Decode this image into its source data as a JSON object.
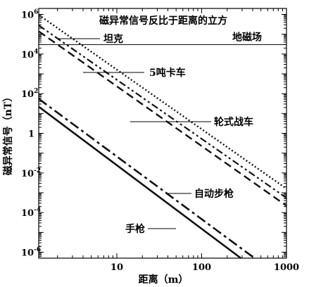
{
  "chart_data": {
    "type": "line",
    "title": "磁异常信号反比于距离的立方",
    "xlabel": "距离（m）",
    "ylabel": "磁异常信号（nT）",
    "x_scale": "log",
    "y_scale": "log",
    "xlim": [
      1.2,
      1000
    ],
    "ylim": [
      5e-07,
      2000000
    ],
    "grid": false,
    "x_ticks": [
      {
        "value": 10,
        "label": "10"
      },
      {
        "value": 100,
        "label": "100"
      },
      {
        "value": 1000,
        "label": "1000"
      }
    ],
    "y_ticks": [
      {
        "value": 1000000,
        "base": "10",
        "exp": "6"
      },
      {
        "value": 10000,
        "base": "10",
        "exp": "4"
      },
      {
        "value": 100,
        "base": "10",
        "exp": "2"
      },
      {
        "value": 1,
        "base": "1",
        "exp": ""
      },
      {
        "value": 0.01,
        "base": "10",
        "exp": "-2"
      },
      {
        "value": 0.0001,
        "base": "10",
        "exp": "-4"
      },
      {
        "value": 1e-06,
        "base": "10",
        "exp": "-6"
      }
    ],
    "reference_lines": [
      {
        "name": "地磁场",
        "y": 30000
      }
    ],
    "series": [
      {
        "name": "坦克",
        "style": "dotted",
        "points": [
          [
            1.2,
            950000
          ],
          [
            1000,
            0.0016
          ]
        ]
      },
      {
        "name": "5吨卡车",
        "style": "dash-dot-dot",
        "points": [
          [
            1.2,
            280000
          ],
          [
            1000,
            0.00055
          ]
        ]
      },
      {
        "name": "轮式战车",
        "style": "dashed",
        "points": [
          [
            1.2,
            140000
          ],
          [
            1000,
            0.00022
          ]
        ]
      },
      {
        "name": "自动步枪",
        "style": "dash-dot",
        "points": [
          [
            1.2,
            55
          ],
          [
            420,
            5e-07
          ]
        ]
      },
      {
        "name": "手枪",
        "style": "solid",
        "points": [
          [
            1.2,
            22
          ],
          [
            290,
            5e-07
          ]
        ]
      }
    ],
    "annotations": [
      {
        "text": "坦克",
        "series": "坦克",
        "x": 2.2,
        "y": 140000
      },
      {
        "text": "5吨卡车",
        "series": "5吨卡车",
        "x": 5.5,
        "y": 1500
      },
      {
        "text": "轮式战车",
        "series": "轮式战车",
        "x": 60,
        "y": 5
      },
      {
        "text": "自动步枪",
        "series": "自动步枪",
        "x": 40,
        "y": 0.0009
      },
      {
        "text": "手枪",
        "series": "手枪",
        "x": 18,
        "y": 4e-05
      },
      {
        "text": "地磁场",
        "series": "地磁场",
        "x": 420,
        "y": 30000
      }
    ]
  }
}
